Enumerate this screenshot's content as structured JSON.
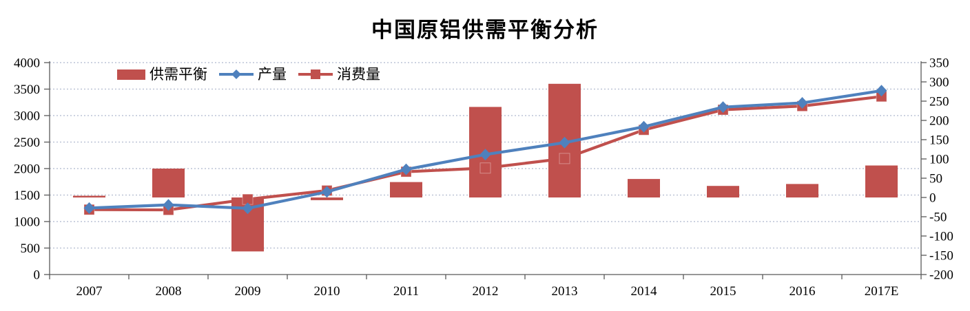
{
  "title": "中国原铝供需平衡分析",
  "legend": {
    "items": [
      {
        "label": "供需平衡",
        "swatch": "bar"
      },
      {
        "label": "产量",
        "swatch": "line-diamond"
      },
      {
        "label": "消费量",
        "swatch": "line-square"
      }
    ]
  },
  "colors": {
    "red": "#C0504D",
    "blue": "#4F81BD",
    "gridline": "#BCC3D6",
    "axis": "#595959",
    "text": "#000000",
    "background": "#FFFFFF"
  },
  "chart_data": {
    "type": "combo-bar-line",
    "categories": [
      "2007",
      "2008",
      "2009",
      "2010",
      "2011",
      "2012",
      "2013",
      "2014",
      "2015",
      "2016",
      "2017E"
    ],
    "series": [
      {
        "name": "供需平衡",
        "type": "bar",
        "axis": "right",
        "color": "#C0504D",
        "values": [
          2,
          75,
          -140,
          -7,
          40,
          235,
          295,
          48,
          30,
          35,
          83
        ]
      },
      {
        "name": "产量",
        "type": "line",
        "marker": "diamond",
        "axis": "left",
        "color": "#4F81BD",
        "values": [
          1255,
          1315,
          1250,
          1560,
          1985,
          2265,
          2490,
          2790,
          3160,
          3240,
          3470
        ]
      },
      {
        "name": "消费量",
        "type": "line",
        "marker": "square",
        "axis": "left",
        "color": "#C0504D",
        "values": [
          1225,
          1220,
          1420,
          1585,
          1940,
          2010,
          2190,
          2730,
          3110,
          3180,
          3360
        ]
      }
    ],
    "left_axis": {
      "min": 0,
      "max": 4000,
      "step": 500,
      "ticks": [
        "0",
        "500",
        "1000",
        "1500",
        "2000",
        "2500",
        "3000",
        "3500",
        "4000"
      ]
    },
    "right_axis": {
      "min": -200,
      "max": 350,
      "step": 50,
      "ticks": [
        "-200",
        "-150",
        "-100",
        "-50",
        "0",
        "50",
        "100",
        "150",
        "200",
        "250",
        "300",
        "350"
      ]
    },
    "grid": {
      "horizontal": true,
      "style": "dotted"
    },
    "legend_position": "top-left-inside"
  }
}
